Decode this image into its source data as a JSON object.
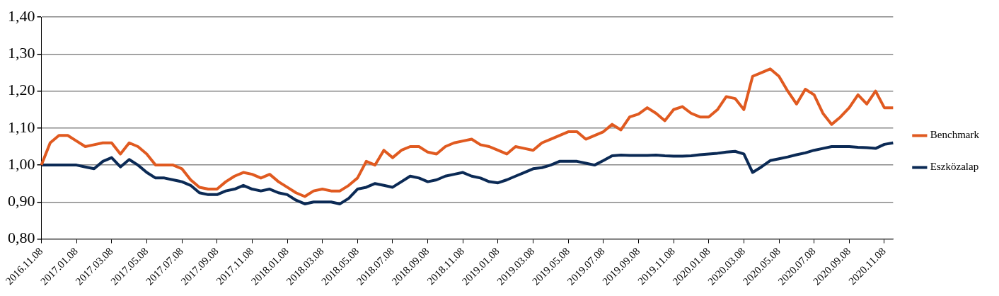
{
  "chart_data": {
    "type": "line",
    "categories": [
      "2016.11.08",
      null,
      null,
      null,
      "2017.01.08",
      null,
      null,
      null,
      "2017.03.08",
      null,
      null,
      null,
      "2017.05.08",
      null,
      null,
      null,
      "2017.07.08",
      null,
      null,
      null,
      "2017.09.08",
      null,
      null,
      null,
      "2017.11.08",
      null,
      null,
      null,
      "2018.01.08",
      null,
      null,
      null,
      "2018.03.08",
      null,
      null,
      null,
      "2018.05.08",
      null,
      null,
      null,
      "2018.07.08",
      null,
      null,
      null,
      "2018.09.08",
      null,
      null,
      null,
      "2018.11.08",
      null,
      null,
      null,
      "2019.01.08",
      null,
      null,
      null,
      "2019.03.08",
      null,
      null,
      null,
      "2019.05.08",
      null,
      null,
      null,
      "2019.07.08",
      null,
      null,
      null,
      "2019.09.08",
      null,
      null,
      null,
      "2019.11.08",
      null,
      null,
      null,
      "2020.01.08",
      null,
      null,
      null,
      "2020.03.08",
      null,
      null,
      null,
      "2020.05.08",
      null,
      null,
      null,
      "2020.07.08",
      null,
      null,
      null,
      "2020.09.08",
      null,
      null,
      null,
      "2020.11.08",
      null
    ],
    "series": [
      {
        "name": "Benchmark",
        "color": "#e05a20",
        "values": [
          1.0,
          1.06,
          1.08,
          1.08,
          1.065,
          1.05,
          1.055,
          1.06,
          1.06,
          1.03,
          1.06,
          1.05,
          1.03,
          1.0,
          1.0,
          1.0,
          0.99,
          0.96,
          0.94,
          0.935,
          0.935,
          0.955,
          0.97,
          0.98,
          0.975,
          0.965,
          0.975,
          0.955,
          0.94,
          0.925,
          0.915,
          0.93,
          0.935,
          0.93,
          0.93,
          0.945,
          0.965,
          1.01,
          1.0,
          1.04,
          1.02,
          1.04,
          1.05,
          1.05,
          1.035,
          1.03,
          1.05,
          1.06,
          1.065,
          1.07,
          1.055,
          1.05,
          1.04,
          1.03,
          1.05,
          1.045,
          1.04,
          1.06,
          1.07,
          1.08,
          1.09,
          1.09,
          1.07,
          1.08,
          1.09,
          1.11,
          1.095,
          1.13,
          1.138,
          1.155,
          1.14,
          1.12,
          1.15,
          1.158,
          1.14,
          1.13,
          1.13,
          1.15,
          1.185,
          1.18,
          1.15,
          1.24,
          1.25,
          1.26,
          1.24,
          1.2,
          1.165,
          1.205,
          1.19,
          1.14,
          1.11,
          1.13,
          1.155,
          1.19,
          1.165,
          1.2,
          1.155,
          1.155
        ]
      },
      {
        "name": "Eszközalap",
        "color": "#0b2a55",
        "values": [
          1.0,
          1.0,
          1.0,
          1.0,
          1.0,
          0.995,
          0.99,
          1.01,
          1.02,
          0.995,
          1.015,
          1.0,
          0.98,
          0.965,
          0.965,
          0.96,
          0.955,
          0.945,
          0.925,
          0.92,
          0.92,
          0.93,
          0.935,
          0.945,
          0.935,
          0.93,
          0.935,
          0.925,
          0.92,
          0.905,
          0.895,
          0.9,
          0.9,
          0.9,
          0.895,
          0.91,
          0.935,
          0.94,
          0.95,
          0.945,
          0.94,
          0.955,
          0.97,
          0.965,
          0.955,
          0.96,
          0.97,
          0.975,
          0.98,
          0.97,
          0.965,
          0.955,
          0.952,
          0.96,
          0.97,
          0.98,
          0.99,
          0.993,
          1.0,
          1.01,
          1.01,
          1.01,
          1.005,
          1.0,
          1.012,
          1.025,
          1.027,
          1.026,
          1.026,
          1.026,
          1.027,
          1.025,
          1.024,
          1.024,
          1.025,
          1.028,
          1.03,
          1.032,
          1.035,
          1.037,
          1.03,
          0.98,
          0.995,
          1.012,
          1.017,
          1.022,
          1.028,
          1.033,
          1.04,
          1.045,
          1.05,
          1.05,
          1.05,
          1.048,
          1.047,
          1.045,
          1.056,
          1.06
        ]
      }
    ],
    "ylim": [
      0.8,
      1.4
    ],
    "yticks": [
      {
        "value": 0.8,
        "label": "0,80"
      },
      {
        "value": 0.9,
        "label": "0,90"
      },
      {
        "value": 1.0,
        "label": "1,00"
      },
      {
        "value": 1.1,
        "label": "1,10"
      },
      {
        "value": 1.2,
        "label": "1,20"
      },
      {
        "value": 1.3,
        "label": "1,30"
      },
      {
        "value": 1.4,
        "label": "1,40"
      }
    ],
    "grid": "y",
    "legend": "right",
    "marker": "none",
    "line_style": "solid"
  }
}
